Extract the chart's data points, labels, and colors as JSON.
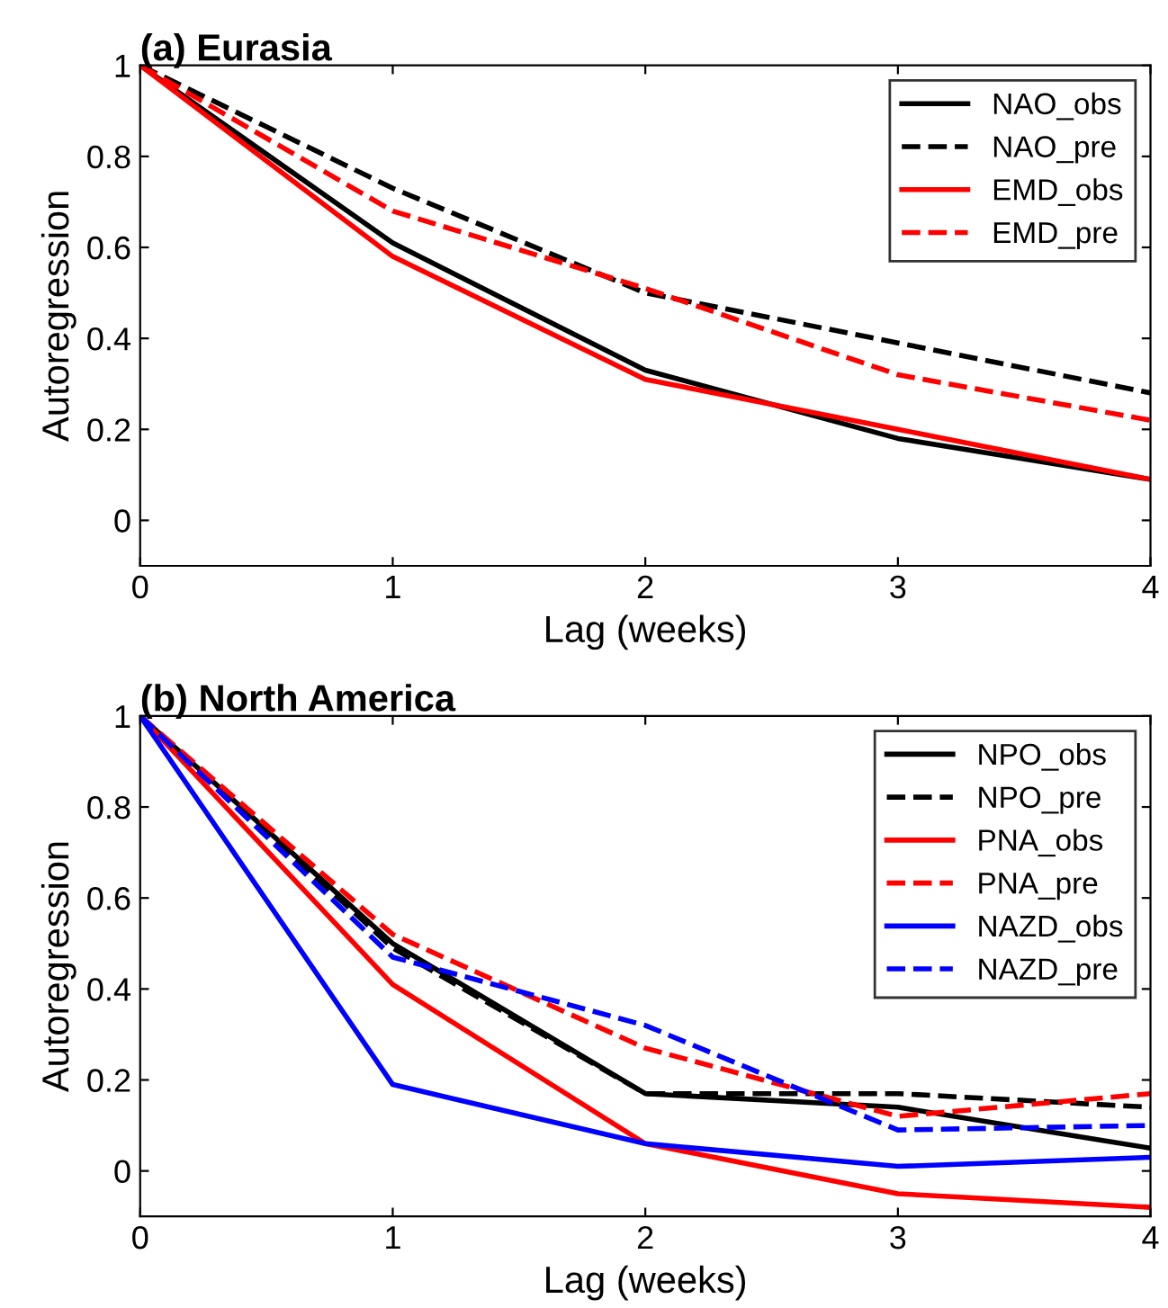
{
  "chart_data": [
    {
      "type": "line",
      "title": "(a) Eurasia",
      "xlabel": "Lag (weeks)",
      "ylabel": "Autoregression",
      "x": [
        0,
        1,
        2,
        3,
        4
      ],
      "xlim": [
        0,
        4
      ],
      "ylim": [
        -0.1,
        1
      ],
      "xticks": [
        0,
        1,
        2,
        3,
        4
      ],
      "yticks": [
        0,
        0.2,
        0.4,
        0.6,
        0.8,
        1
      ],
      "legend": "top right",
      "grid": false,
      "series": [
        {
          "name": "NAO_obs",
          "color": "#000000",
          "line_style": "solid",
          "values": [
            1,
            0.61,
            0.33,
            0.18,
            0.09
          ]
        },
        {
          "name": "NAO_pre",
          "color": "#000000",
          "line_style": "dashed",
          "values": [
            1,
            0.73,
            0.5,
            0.39,
            0.28
          ]
        },
        {
          "name": "EMD_obs",
          "color": "#ff0000",
          "line_style": "solid",
          "values": [
            1,
            0.58,
            0.31,
            0.2,
            0.09
          ]
        },
        {
          "name": "EMD_pre",
          "color": "#ff0000",
          "line_style": "dashed",
          "values": [
            1,
            0.68,
            0.51,
            0.32,
            0.22
          ]
        }
      ]
    },
    {
      "type": "line",
      "title": "(b) North America",
      "xlabel": "Lag (weeks)",
      "ylabel": "Autoregression",
      "x": [
        0,
        1,
        2,
        3,
        4
      ],
      "xlim": [
        0,
        4
      ],
      "ylim": [
        -0.1,
        1
      ],
      "xticks": [
        0,
        1,
        2,
        3,
        4
      ],
      "yticks": [
        0,
        0.2,
        0.4,
        0.6,
        0.8,
        1
      ],
      "legend": "top right",
      "grid": false,
      "series": [
        {
          "name": "NPO_obs",
          "color": "#000000",
          "line_style": "solid",
          "values": [
            1,
            0.5,
            0.17,
            0.14,
            0.05
          ]
        },
        {
          "name": "NPO_pre",
          "color": "#000000",
          "line_style": "dashed",
          "values": [
            1,
            0.49,
            0.17,
            0.17,
            0.14
          ]
        },
        {
          "name": "PNA_obs",
          "color": "#ff0000",
          "line_style": "solid",
          "values": [
            1,
            0.41,
            0.06,
            -0.05,
            -0.08
          ]
        },
        {
          "name": "PNA_pre",
          "color": "#ff0000",
          "line_style": "dashed",
          "values": [
            1,
            0.52,
            0.27,
            0.12,
            0.17
          ]
        },
        {
          "name": "NAZD_obs",
          "color": "#0000ff",
          "line_style": "solid",
          "values": [
            1,
            0.19,
            0.06,
            0.01,
            0.03
          ]
        },
        {
          "name": "NAZD_pre",
          "color": "#0000ff",
          "line_style": "dashed",
          "values": [
            1,
            0.47,
            0.32,
            0.09,
            0.1
          ]
        }
      ]
    }
  ]
}
